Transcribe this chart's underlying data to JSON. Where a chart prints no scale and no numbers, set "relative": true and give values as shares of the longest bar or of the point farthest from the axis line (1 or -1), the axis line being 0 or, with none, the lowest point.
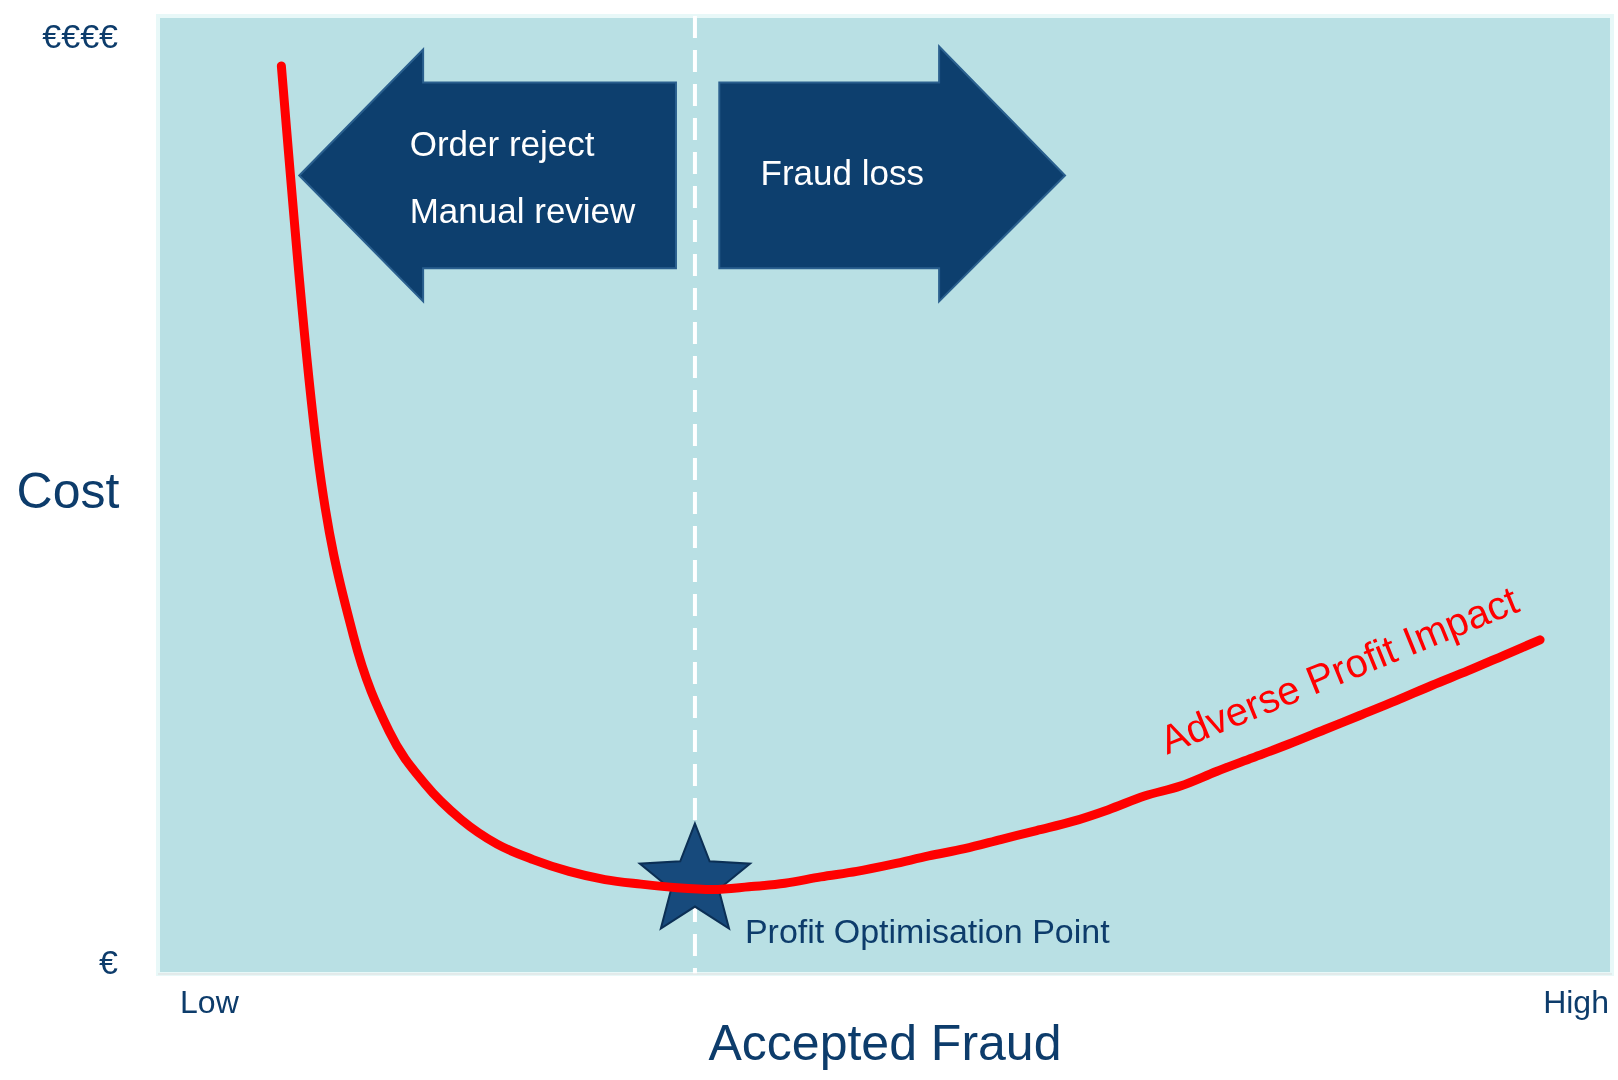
{
  "chart_data": {
    "type": "line",
    "relative": true,
    "xlabel": "Accepted Fraud",
    "ylabel": "Cost",
    "categories": [
      "Low",
      null,
      null,
      null,
      null,
      null,
      null,
      null,
      null,
      null,
      null,
      null,
      null,
      null,
      null,
      null,
      null,
      null,
      null,
      null,
      null,
      null,
      null,
      null,
      null,
      null,
      null,
      null,
      null,
      null,
      null,
      null,
      null,
      null,
      null,
      null,
      null,
      null,
      "High"
    ],
    "series": [
      {
        "name": "Adverse Profit Impact",
        "color": "#ff0000",
        "values": [
          null,
          null,
          1,
          0.574,
          0.373,
          0.267,
          0.209,
          0.17,
          0.143,
          0.126,
          0.113,
          0.104,
          0.099,
          0.095,
          0.093,
          0.096,
          0.1,
          0.107,
          0.113,
          0.121,
          0.13,
          0.138,
          0.148,
          0.158,
          0.168,
          0.181,
          0.196,
          0.207,
          0.223,
          0.238,
          0.253,
          0.269,
          0.285,
          0.301,
          0.318,
          0.334,
          0.351,
          0.368,
          null
        ]
      }
    ],
    "annotations": [
      "€€€€",
      "€",
      "Order reject",
      "Manual review",
      "Fraud loss",
      "Profit Optimisation Point"
    ],
    "marker": "none",
    "line_style": "solid",
    "grid": false,
    "legend": false
  }
}
